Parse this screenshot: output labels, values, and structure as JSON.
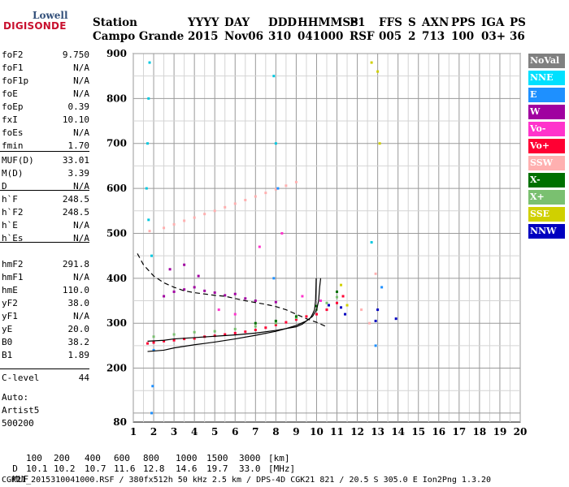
{
  "logo": {
    "line1": "Lowell",
    "line2": "DIGISONDE"
  },
  "header": {
    "row1": [
      "Station",
      "YYYY",
      "DAY",
      "DDD",
      "HHMMSS",
      "P1",
      "FFS",
      "S",
      "AXN",
      "PPS",
      "IGA",
      "PS"
    ],
    "row2": [
      "Campo Grande",
      "2015",
      "Nov06",
      "310",
      "041000",
      "RSF",
      "005",
      "2",
      "713",
      "100",
      "03+",
      "36"
    ]
  },
  "params": {
    "group1": [
      {
        "label": "foF2",
        "value": "9.750"
      },
      {
        "label": "foF1",
        "value": "N/A"
      },
      {
        "label": "foF1p",
        "value": "N/A"
      },
      {
        "label": "foE",
        "value": "N/A"
      },
      {
        "label": "foEp",
        "value": "0.39"
      },
      {
        "label": "fxI",
        "value": "10.10"
      },
      {
        "label": "foEs",
        "value": "N/A"
      },
      {
        "label": "fmin",
        "value": "1.70"
      }
    ],
    "group2": [
      {
        "label": "MUF(D)",
        "value": "33.01"
      },
      {
        "label": "M(D)",
        "value": "3.39"
      },
      {
        "label": "D",
        "value": "N/A"
      }
    ],
    "group3": [
      {
        "label": "h`F",
        "value": "248.5"
      },
      {
        "label": "h`F2",
        "value": "248.5"
      },
      {
        "label": "h`E",
        "value": "N/A"
      },
      {
        "label": "h`Es",
        "value": "N/A"
      }
    ],
    "group4": [
      {
        "label": "hmF2",
        "value": "291.8"
      },
      {
        "label": "hmF1",
        "value": "N/A"
      },
      {
        "label": "hmE",
        "value": "110.0"
      },
      {
        "label": "yF2",
        "value": "38.0"
      },
      {
        "label": "yF1",
        "value": "N/A"
      },
      {
        "label": "yE",
        "value": "20.0"
      },
      {
        "label": "B0",
        "value": "38.2"
      },
      {
        "label": "B1",
        "value": "1.89"
      }
    ],
    "group5": [
      {
        "label": "C-level",
        "value": "44"
      }
    ]
  },
  "scaling": {
    "auto": "Auto:",
    "artist": "Artist5",
    "version": "500200"
  },
  "legend": [
    {
      "label": "NoVal",
      "bg": "#808080",
      "fg": "#ffffff"
    },
    {
      "label": "NNE",
      "bg": "#00e0ff",
      "fg": "#ffffff"
    },
    {
      "label": "E",
      "bg": "#1e90ff",
      "fg": "#ffffff"
    },
    {
      "label": "W",
      "bg": "#a000a0",
      "fg": "#ffffff"
    },
    {
      "label": "Vo-",
      "bg": "#ff33cc",
      "fg": "#ffffff"
    },
    {
      "label": "Vo+",
      "bg": "#ff0033",
      "fg": "#ffffff"
    },
    {
      "label": "SSW",
      "bg": "#ffb0b0",
      "fg": "#ffffff"
    },
    {
      "label": "X-",
      "bg": "#007000",
      "fg": "#ffffff"
    },
    {
      "label": "X+",
      "bg": "#7ac070",
      "fg": "#ffffff"
    },
    {
      "label": "SSE",
      "bg": "#d0d000",
      "fg": "#ffffff"
    },
    {
      "label": "NNW",
      "bg": "#0000c0",
      "fg": "#ffffff"
    }
  ],
  "footer": {
    "d_label": "D",
    "d_values": [
      "100",
      "200",
      "400",
      "600",
      "800",
      "1000",
      "1500",
      "3000",
      "[km]"
    ],
    "muf_label": "MUF",
    "muf_values": [
      "10.1",
      "10.2",
      "10.7",
      "11.6",
      "12.8",
      "14.6",
      "19.7",
      "33.0",
      "[MHz]"
    ],
    "info": "CGK21_2015310041000.RSF / 380fx512h 50 kHz 2.5 km / DPS-4D CGK21 821 / 20.5 S 305.0 E Ion2Png 1.3.20"
  },
  "chart_data": {
    "type": "scatter",
    "title": "",
    "xlabel": "",
    "ylabel": "",
    "xlim": [
      1,
      20
    ],
    "ylim": [
      80,
      900
    ],
    "x_ticks": [
      1,
      2,
      3,
      4,
      5,
      6,
      7,
      8,
      9,
      10,
      11,
      12,
      13,
      14,
      15,
      16,
      17,
      18,
      19,
      20
    ],
    "y_ticks": [
      80,
      200,
      300,
      400,
      500,
      600,
      700,
      800,
      900
    ],
    "x_minor_step": 0.5,
    "y_gridlines": [
      100,
      150,
      200,
      250,
      300,
      350,
      400,
      450,
      500,
      550,
      600,
      650,
      700,
      750,
      800,
      850,
      900
    ],
    "grid": true,
    "legend_position": "right",
    "series": [
      {
        "color": "#ff0033",
        "points": [
          [
            1.7,
            255
          ],
          [
            2,
            257
          ],
          [
            2.5,
            260
          ],
          [
            3,
            262
          ],
          [
            3.5,
            265
          ],
          [
            4,
            266
          ],
          [
            4.5,
            270
          ],
          [
            5,
            272
          ],
          [
            5.5,
            275
          ],
          [
            6,
            278
          ],
          [
            6.5,
            281
          ],
          [
            7,
            285
          ],
          [
            7.5,
            290
          ],
          [
            8,
            296
          ],
          [
            8.5,
            302
          ],
          [
            9,
            308
          ],
          [
            9.5,
            315
          ],
          [
            10,
            320
          ],
          [
            10.5,
            330
          ],
          [
            11,
            345
          ],
          [
            11.3,
            360
          ]
        ]
      },
      {
        "color": "#7ac070",
        "points": [
          [
            2,
            270
          ],
          [
            3,
            275
          ],
          [
            4,
            280
          ],
          [
            5,
            282
          ],
          [
            6,
            287
          ],
          [
            7,
            293
          ],
          [
            8,
            300
          ],
          [
            9,
            312
          ],
          [
            10,
            330
          ],
          [
            10.5,
            345
          ],
          [
            11,
            358
          ]
        ]
      },
      {
        "color": "#ffb0b0",
        "points": [
          [
            1.8,
            505
          ],
          [
            2.5,
            512
          ],
          [
            3,
            520
          ],
          [
            3.5,
            528
          ],
          [
            4,
            535
          ],
          [
            4.5,
            543
          ],
          [
            5,
            550
          ],
          [
            5.5,
            558
          ],
          [
            6,
            566
          ],
          [
            6.5,
            574
          ],
          [
            7,
            582
          ],
          [
            7.5,
            590
          ],
          [
            8,
            598
          ],
          [
            8.5,
            606
          ],
          [
            9,
            614
          ],
          [
            12.2,
            330
          ],
          [
            12.6,
            300
          ],
          [
            12.9,
            410
          ]
        ]
      },
      {
        "color": "#a000a0",
        "points": [
          [
            2.5,
            360
          ],
          [
            3,
            370
          ],
          [
            3.5,
            375
          ],
          [
            4,
            380
          ],
          [
            4.5,
            372
          ],
          [
            5,
            368
          ],
          [
            5.5,
            362
          ],
          [
            6,
            365
          ],
          [
            6.5,
            355
          ],
          [
            7,
            350
          ],
          [
            8,
            347
          ],
          [
            2.8,
            420
          ],
          [
            3.5,
            430
          ],
          [
            4.2,
            405
          ]
        ]
      },
      {
        "color": "#00c8e0",
        "points": [
          [
            1.65,
            600
          ],
          [
            1.7,
            700
          ],
          [
            1.75,
            800
          ],
          [
            1.8,
            880
          ],
          [
            1.9,
            450
          ],
          [
            1.75,
            530
          ],
          [
            7.9,
            850
          ],
          [
            8,
            700
          ],
          [
            12.7,
            480
          ]
        ]
      },
      {
        "color": "#1e90ff",
        "points": [
          [
            1.9,
            100
          ],
          [
            1.95,
            160
          ],
          [
            2,
            240
          ],
          [
            7.9,
            400
          ],
          [
            8.1,
            600
          ],
          [
            12.9,
            250
          ],
          [
            13.2,
            380
          ]
        ]
      },
      {
        "color": "#0000c0",
        "points": [
          [
            11.2,
            335
          ],
          [
            11.4,
            320
          ],
          [
            12.9,
            305
          ],
          [
            13,
            330
          ],
          [
            13.9,
            310
          ],
          [
            10.6,
            340
          ]
        ]
      },
      {
        "color": "#d0d000",
        "points": [
          [
            11.2,
            385
          ],
          [
            11.5,
            340
          ],
          [
            12.7,
            880
          ],
          [
            13,
            860
          ],
          [
            13.1,
            700
          ]
        ]
      },
      {
        "color": "#ff33cc",
        "points": [
          [
            5.2,
            330
          ],
          [
            6,
            320
          ],
          [
            7.2,
            470
          ],
          [
            8.3,
            500
          ],
          [
            9.3,
            360
          ],
          [
            10.2,
            350
          ]
        ]
      },
      {
        "color": "#007000",
        "points": [
          [
            7,
            300
          ],
          [
            8,
            305
          ],
          [
            9,
            315
          ],
          [
            10,
            338
          ],
          [
            11,
            370
          ]
        ]
      }
    ],
    "profile_solid": [
      [
        1.7,
        237
      ],
      [
        2.5,
        240
      ],
      [
        3,
        245
      ],
      [
        4,
        252
      ],
      [
        5,
        258
      ],
      [
        6,
        265
      ],
      [
        7,
        273
      ],
      [
        8,
        282
      ],
      [
        8.5,
        288
      ],
      [
        9,
        295
      ],
      [
        9.5,
        305
      ],
      [
        9.8,
        315
      ],
      [
        10,
        330
      ],
      [
        10.1,
        350
      ],
      [
        10.15,
        380
      ],
      [
        10.2,
        400
      ]
    ],
    "profile_solid_upper": [
      [
        1.7,
        260
      ],
      [
        2.5,
        262
      ],
      [
        3,
        265
      ],
      [
        4,
        268
      ],
      [
        5,
        271
      ],
      [
        6,
        274
      ],
      [
        7,
        278
      ],
      [
        8,
        284
      ],
      [
        8.5,
        288
      ],
      [
        9,
        292
      ],
      [
        9.3,
        298
      ],
      [
        9.5,
        305
      ],
      [
        9.7,
        312
      ],
      [
        9.8,
        320
      ],
      [
        9.9,
        330
      ],
      [
        9.95,
        350
      ],
      [
        9.97,
        380
      ],
      [
        9.98,
        400
      ]
    ],
    "profile_dashed": [
      [
        1.2,
        455
      ],
      [
        1.5,
        430
      ],
      [
        2,
        405
      ],
      [
        2.5,
        390
      ],
      [
        3,
        380
      ],
      [
        3.5,
        372
      ],
      [
        4,
        368
      ],
      [
        4.5,
        365
      ],
      [
        5,
        362
      ],
      [
        5.5,
        360
      ],
      [
        6,
        355
      ],
      [
        6.5,
        350
      ],
      [
        7,
        346
      ],
      [
        7.5,
        342
      ],
      [
        8,
        337
      ],
      [
        8.5,
        330
      ],
      [
        9,
        320
      ],
      [
        9.5,
        310
      ],
      [
        10,
        302
      ],
      [
        10.5,
        292
      ]
    ]
  }
}
